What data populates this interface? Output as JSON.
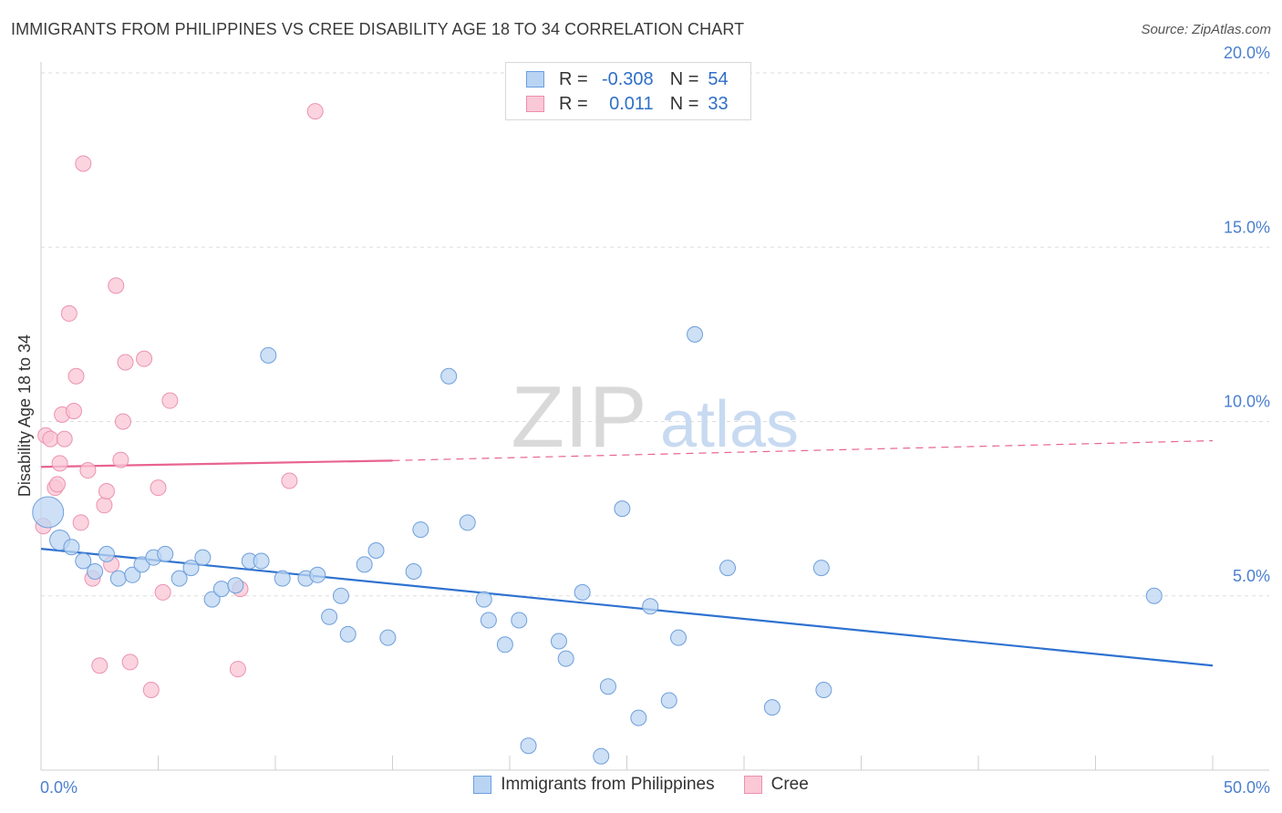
{
  "title": "IMMIGRANTS FROM PHILIPPINES VS CREE DISABILITY AGE 18 TO 34 CORRELATION CHART",
  "source": "Source: ZipAtlas.com",
  "watermark": {
    "zip": "ZIP",
    "atlas": "atlas"
  },
  "legend": {
    "r_label": "R =",
    "n_label": "N =",
    "rows": [
      {
        "r": "-0.308",
        "n": "54",
        "fill": "#b9d4f3",
        "stroke": "#6a9fe0"
      },
      {
        "r": "0.011",
        "n": "33",
        "fill": "#fac8d7",
        "stroke": "#ee8fae"
      }
    ]
  },
  "colors": {
    "blue_fill": "#bcd5f2",
    "blue_stroke": "#6f9fdc",
    "blue_line": "#2f72d0",
    "pink_fill": "#f9c6d5",
    "pink_stroke": "#ec92b0",
    "pink_line": "#e8648f",
    "axis_label": "#4a7fd0",
    "grid": "#dddddd"
  },
  "chart_data": {
    "type": "scatter",
    "title": "IMMIGRANTS FROM PHILIPPINES VS CREE DISABILITY AGE 18 TO 34 CORRELATION CHART",
    "xlabel": "",
    "ylabel": "Disability Age 18 to 34",
    "xlim": [
      0,
      50
    ],
    "ylim": [
      0,
      20
    ],
    "x_tick_labels": [
      "0.0%",
      "50.0%"
    ],
    "y_ticks": [
      5,
      10,
      15,
      20
    ],
    "y_tick_labels": [
      "5.0%",
      "10.0%",
      "15.0%",
      "20.0%"
    ],
    "grid": true,
    "legend_position": "top-center",
    "series": [
      {
        "name": "Immigrants from Philippines",
        "r": -0.308,
        "n": 54,
        "points": [
          [
            0.3,
            7.4
          ],
          [
            0.8,
            6.6
          ],
          [
            1.3,
            6.4
          ],
          [
            1.8,
            6.0
          ],
          [
            2.3,
            5.7
          ],
          [
            2.8,
            6.2
          ],
          [
            3.3,
            5.5
          ],
          [
            3.9,
            5.6
          ],
          [
            4.3,
            5.9
          ],
          [
            4.8,
            6.1
          ],
          [
            5.3,
            6.2
          ],
          [
            5.9,
            5.5
          ],
          [
            6.4,
            5.8
          ],
          [
            6.9,
            6.1
          ],
          [
            7.3,
            4.9
          ],
          [
            7.7,
            5.2
          ],
          [
            8.3,
            5.3
          ],
          [
            8.9,
            6.0
          ],
          [
            9.4,
            6.0
          ],
          [
            9.7,
            11.9
          ],
          [
            10.3,
            5.5
          ],
          [
            11.3,
            5.5
          ],
          [
            11.8,
            5.6
          ],
          [
            12.3,
            4.4
          ],
          [
            12.8,
            5.0
          ],
          [
            13.1,
            3.9
          ],
          [
            13.8,
            5.9
          ],
          [
            14.3,
            6.3
          ],
          [
            14.8,
            3.8
          ],
          [
            15.9,
            5.7
          ],
          [
            16.2,
            6.9
          ],
          [
            17.4,
            11.3
          ],
          [
            18.2,
            7.1
          ],
          [
            18.9,
            4.9
          ],
          [
            19.1,
            4.3
          ],
          [
            19.8,
            3.6
          ],
          [
            20.4,
            4.3
          ],
          [
            20.8,
            0.7
          ],
          [
            22.1,
            3.7
          ],
          [
            22.4,
            3.2
          ],
          [
            23.1,
            5.1
          ],
          [
            23.9,
            0.4
          ],
          [
            24.2,
            2.4
          ],
          [
            24.8,
            7.5
          ],
          [
            25.5,
            1.5
          ],
          [
            26.0,
            4.7
          ],
          [
            26.8,
            2.0
          ],
          [
            27.2,
            3.8
          ],
          [
            27.9,
            12.5
          ],
          [
            29.3,
            5.8
          ],
          [
            31.2,
            1.8
          ],
          [
            33.3,
            5.8
          ],
          [
            33.4,
            2.3
          ],
          [
            47.5,
            5.0
          ]
        ]
      },
      {
        "name": "Cree",
        "r": 0.011,
        "n": 33,
        "points": [
          [
            0.1,
            7.0
          ],
          [
            0.2,
            9.6
          ],
          [
            0.4,
            9.5
          ],
          [
            0.6,
            8.1
          ],
          [
            0.7,
            8.2
          ],
          [
            0.8,
            8.8
          ],
          [
            0.9,
            10.2
          ],
          [
            1.0,
            9.5
          ],
          [
            1.2,
            13.1
          ],
          [
            1.5,
            11.3
          ],
          [
            1.4,
            10.3
          ],
          [
            1.7,
            7.1
          ],
          [
            1.8,
            17.4
          ],
          [
            2.0,
            8.6
          ],
          [
            2.2,
            5.5
          ],
          [
            2.5,
            3.0
          ],
          [
            2.7,
            7.6
          ],
          [
            2.8,
            8.0
          ],
          [
            3.0,
            5.9
          ],
          [
            3.2,
            13.9
          ],
          [
            3.4,
            8.9
          ],
          [
            3.5,
            10.0
          ],
          [
            3.6,
            11.7
          ],
          [
            3.8,
            3.1
          ],
          [
            4.4,
            11.8
          ],
          [
            4.7,
            2.3
          ],
          [
            5.0,
            8.1
          ],
          [
            5.2,
            5.1
          ],
          [
            5.5,
            10.6
          ],
          [
            8.4,
            2.9
          ],
          [
            8.5,
            5.2
          ],
          [
            10.6,
            8.3
          ],
          [
            11.7,
            18.9
          ]
        ]
      }
    ],
    "trend_lines": [
      {
        "series": "Immigrants from Philippines",
        "x": [
          0,
          50
        ],
        "y": [
          6.35,
          3.0
        ],
        "style": "solid"
      },
      {
        "series": "Cree",
        "x": [
          0,
          15
        ],
        "y": [
          8.7,
          8.88
        ],
        "style": "solid"
      },
      {
        "series": "Cree",
        "x": [
          15,
          50
        ],
        "y": [
          8.88,
          9.45
        ],
        "style": "dashed"
      }
    ]
  },
  "bottom_legend": [
    {
      "label": "Immigrants from Philippines"
    },
    {
      "label": "Cree"
    }
  ]
}
